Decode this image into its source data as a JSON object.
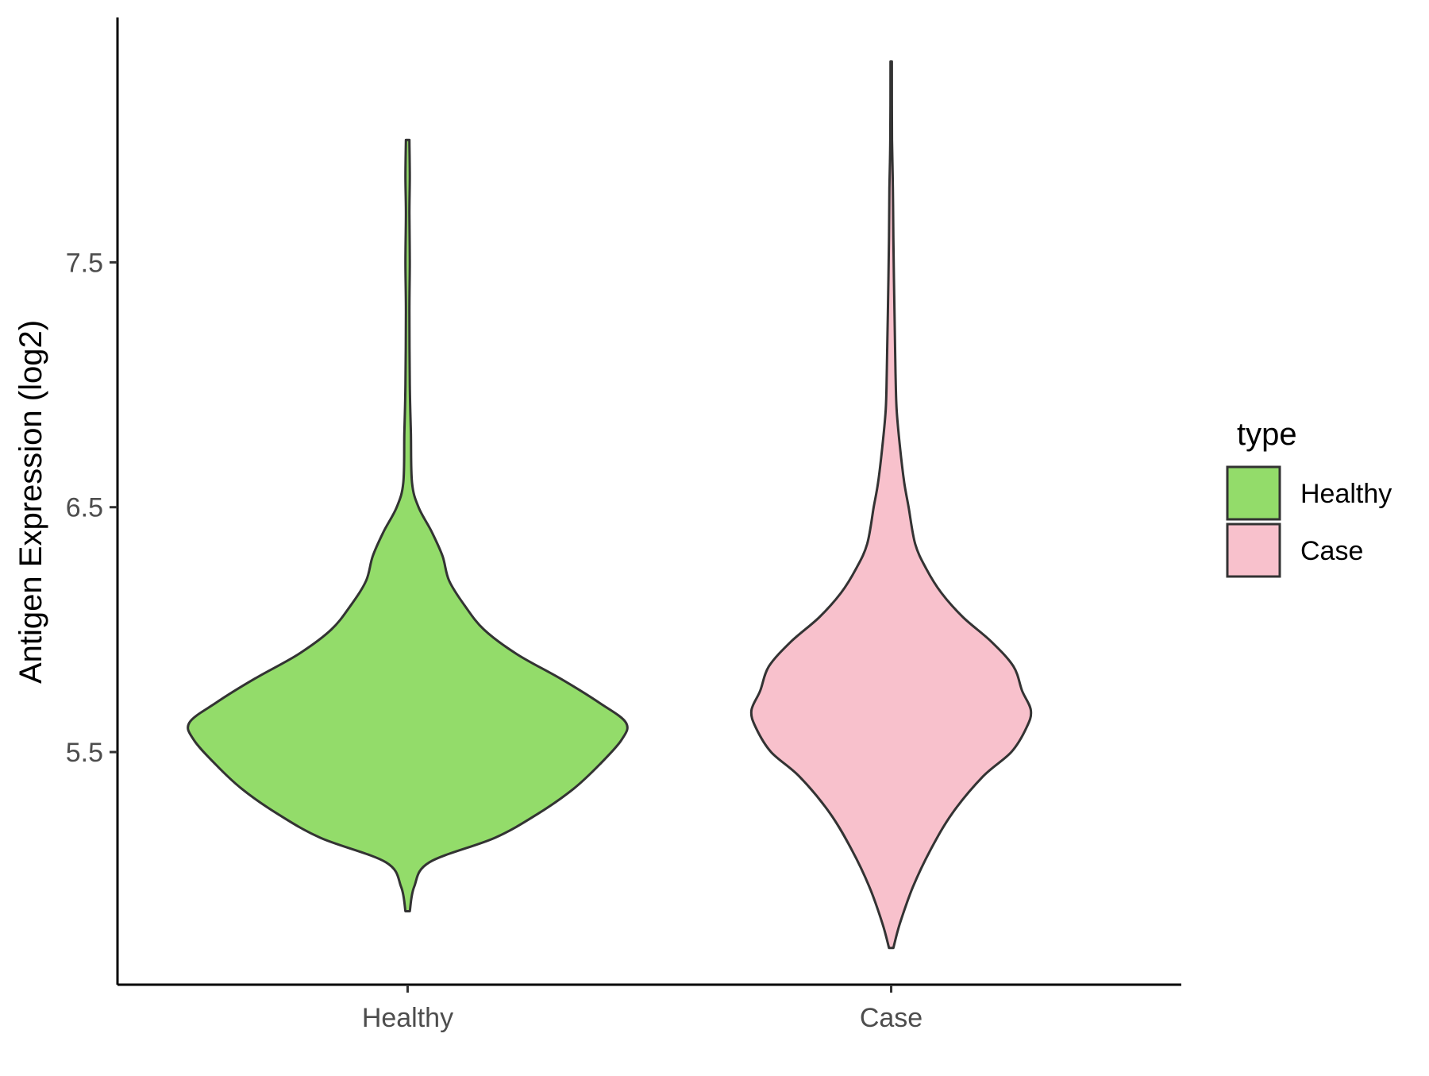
{
  "chart_data": {
    "type": "violin",
    "ylabel": "Antigen Expression (log2)",
    "xlabel": "",
    "categories": [
      "Healthy",
      "Case"
    ],
    "y_ticks": [
      5.5,
      6.5,
      7.5
    ],
    "y_tick_labels": [
      "5.5",
      "6.5",
      "7.5"
    ],
    "ylim": [
      4.55,
      8.5
    ],
    "grid": false,
    "legend": {
      "title": "type",
      "placement": "right",
      "entries": [
        {
          "label": "Healthy",
          "color": "#93DC6A"
        },
        {
          "label": "Case",
          "color": "#F8C1CC"
        }
      ]
    },
    "series": [
      {
        "category": "Healthy",
        "color": "#93DC6A",
        "min": 4.85,
        "max": 8.0,
        "density": [
          [
            4.85,
            0.01
          ],
          [
            4.95,
            0.03
          ],
          [
            5.05,
            0.1
          ],
          [
            5.15,
            0.4
          ],
          [
            5.25,
            0.6
          ],
          [
            5.35,
            0.76
          ],
          [
            5.45,
            0.88
          ],
          [
            5.55,
            0.98
          ],
          [
            5.62,
            1.0
          ],
          [
            5.7,
            0.88
          ],
          [
            5.8,
            0.7
          ],
          [
            5.9,
            0.5
          ],
          [
            6.0,
            0.35
          ],
          [
            6.1,
            0.26
          ],
          [
            6.2,
            0.19
          ],
          [
            6.3,
            0.16
          ],
          [
            6.4,
            0.11
          ],
          [
            6.5,
            0.05
          ],
          [
            6.6,
            0.02
          ],
          [
            6.8,
            0.015
          ],
          [
            7.0,
            0.01
          ],
          [
            7.3,
            0.008
          ],
          [
            7.5,
            0.01
          ],
          [
            7.7,
            0.008
          ],
          [
            7.85,
            0.01
          ],
          [
            8.0,
            0.008
          ]
        ]
      },
      {
        "category": "Case",
        "color": "#F8C1CC",
        "min": 4.7,
        "max": 8.32,
        "density": [
          [
            4.7,
            0.01
          ],
          [
            4.8,
            0.04
          ],
          [
            4.95,
            0.1
          ],
          [
            5.1,
            0.18
          ],
          [
            5.25,
            0.28
          ],
          [
            5.4,
            0.42
          ],
          [
            5.5,
            0.55
          ],
          [
            5.6,
            0.62
          ],
          [
            5.67,
            0.64
          ],
          [
            5.75,
            0.6
          ],
          [
            5.85,
            0.56
          ],
          [
            5.95,
            0.46
          ],
          [
            6.05,
            0.33
          ],
          [
            6.15,
            0.23
          ],
          [
            6.25,
            0.16
          ],
          [
            6.35,
            0.11
          ],
          [
            6.5,
            0.08
          ],
          [
            6.6,
            0.06
          ],
          [
            6.75,
            0.04
          ],
          [
            6.9,
            0.025
          ],
          [
            7.05,
            0.02
          ],
          [
            7.3,
            0.015
          ],
          [
            7.6,
            0.01
          ],
          [
            7.8,
            0.008
          ],
          [
            8.0,
            0.004
          ],
          [
            8.32,
            0.003
          ]
        ]
      }
    ]
  }
}
